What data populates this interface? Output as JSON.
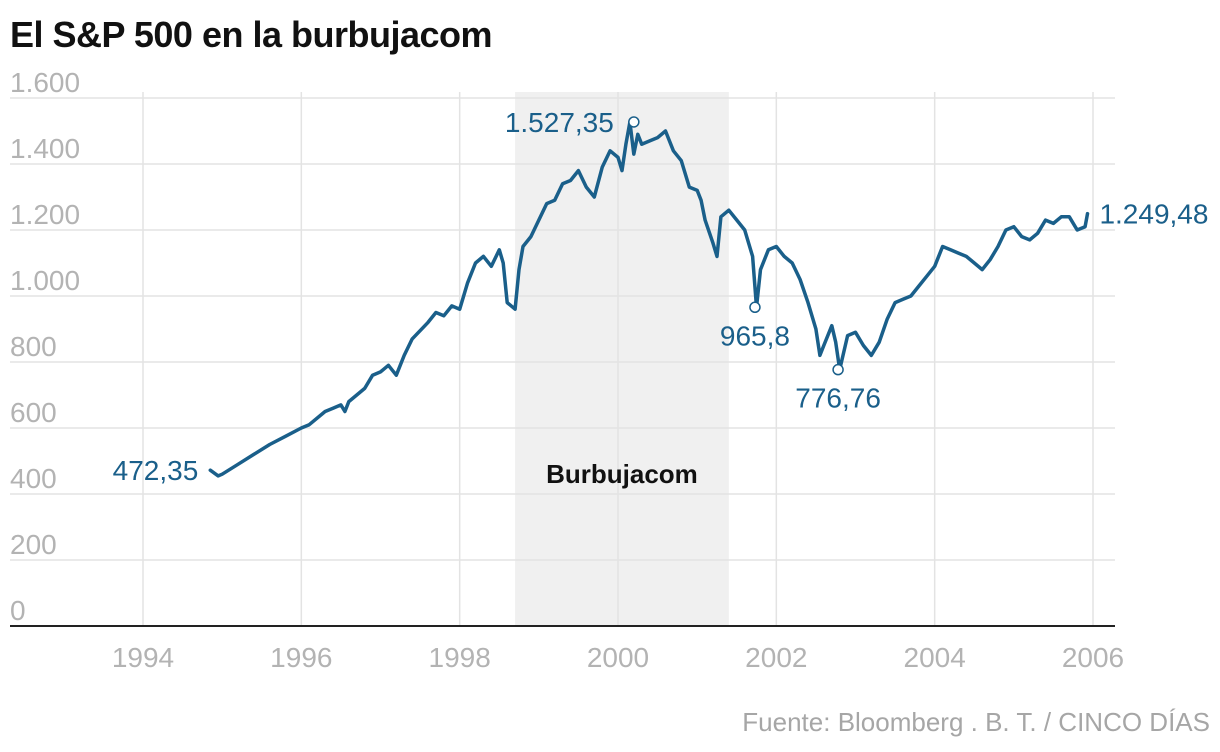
{
  "title": "El S&P 500 en la burbujacom",
  "source": "Fuente: Bloomberg . B. T. / CINCO DÍAS",
  "colors": {
    "line": "#1a5f8a",
    "shade": "#f0f0f0",
    "grid": "#e3e3e3",
    "tick": "#b3b3b3",
    "axis": "#222222"
  },
  "chart_data": {
    "type": "line",
    "title": "El S&P 500 en la burbujacom",
    "xlabel": "",
    "ylabel": "",
    "xlim": [
      1994,
      2006
    ],
    "ylim": [
      0,
      1600
    ],
    "grid": true,
    "y_ticks": [
      {
        "value": 0,
        "label": "0"
      },
      {
        "value": 200,
        "label": "200"
      },
      {
        "value": 400,
        "label": "400"
      },
      {
        "value": 600,
        "label": "600"
      },
      {
        "value": 800,
        "label": "800"
      },
      {
        "value": 1000,
        "label": "1.000"
      },
      {
        "value": 1200,
        "label": "1.200"
      },
      {
        "value": 1400,
        "label": "1.400"
      },
      {
        "value": 1600,
        "label": "1.600"
      }
    ],
    "x_ticks": [
      {
        "value": 1994,
        "label": "1994"
      },
      {
        "value": 1996,
        "label": "1996"
      },
      {
        "value": 1998,
        "label": "1998"
      },
      {
        "value": 2000,
        "label": "2000"
      },
      {
        "value": 2002,
        "label": "2002"
      },
      {
        "value": 2004,
        "label": "2004"
      },
      {
        "value": 2006,
        "label": "2006"
      }
    ],
    "shaded_region": {
      "x": [
        1998.7,
        2001.4
      ],
      "label": "Burbujacom"
    },
    "series": [
      {
        "x": [
          1994.85,
          1994.95,
          1995.0,
          1995.2,
          1995.4,
          1995.6,
          1995.8,
          1996.0,
          1996.1,
          1996.3,
          1996.4,
          1996.5,
          1996.55,
          1996.6,
          1996.8,
          1996.9,
          1997.0,
          1997.1,
          1997.2,
          1997.3,
          1997.4,
          1997.6,
          1997.7,
          1997.8,
          1997.9,
          1998.0,
          1998.1,
          1998.2,
          1998.3,
          1998.4,
          1998.5,
          1998.55,
          1998.6,
          1998.7,
          1998.75,
          1998.8,
          1998.9,
          1999.0,
          1999.1,
          1999.2,
          1999.3,
          1999.4,
          1999.5,
          1999.6,
          1999.7,
          1999.8,
          1999.9,
          2000.0,
          2000.05,
          2000.1,
          2000.15,
          2000.2,
          2000.25,
          2000.3,
          2000.4,
          2000.5,
          2000.6,
          2000.7,
          2000.8,
          2000.9,
          2001.0,
          2001.05,
          2001.1,
          2001.2,
          2001.25,
          2001.3,
          2001.4,
          2001.5,
          2001.6,
          2001.7,
          2001.75,
          2001.8,
          2001.9,
          2002.0,
          2002.1,
          2002.2,
          2002.3,
          2002.4,
          2002.5,
          2002.55,
          2002.6,
          2002.7,
          2002.75,
          2002.8,
          2002.9,
          2003.0,
          2003.1,
          2003.2,
          2003.3,
          2003.4,
          2003.5,
          2003.6,
          2003.7,
          2003.8,
          2003.9,
          2004.0,
          2004.1,
          2004.2,
          2004.3,
          2004.4,
          2004.5,
          2004.6,
          2004.7,
          2004.8,
          2004.9,
          2005.0,
          2005.1,
          2005.2,
          2005.3,
          2005.4,
          2005.5,
          2005.6,
          2005.7,
          2005.8,
          2005.9,
          2005.93
        ],
        "y": [
          472,
          455,
          460,
          490,
          520,
          550,
          575,
          600,
          610,
          650,
          660,
          670,
          650,
          680,
          720,
          760,
          770,
          790,
          760,
          820,
          870,
          920,
          950,
          940,
          970,
          960,
          1040,
          1100,
          1120,
          1090,
          1140,
          1100,
          980,
          960,
          1080,
          1150,
          1180,
          1230,
          1280,
          1290,
          1340,
          1350,
          1380,
          1330,
          1300,
          1390,
          1440,
          1420,
          1380,
          1460,
          1527,
          1430,
          1490,
          1460,
          1470,
          1480,
          1500,
          1440,
          1410,
          1330,
          1320,
          1290,
          1230,
          1160,
          1120,
          1240,
          1260,
          1230,
          1200,
          1120,
          966,
          1080,
          1140,
          1150,
          1120,
          1100,
          1050,
          980,
          900,
          820,
          850,
          910,
          860,
          777,
          880,
          890,
          850,
          820,
          860,
          930,
          980,
          990,
          1000,
          1030,
          1060,
          1090,
          1150,
          1140,
          1130,
          1120,
          1100,
          1080,
          1110,
          1150,
          1200,
          1210,
          1180,
          1170,
          1190,
          1230,
          1220,
          1240,
          1240,
          1200,
          1210,
          1249.48
        ]
      }
    ],
    "annotations": [
      {
        "x": 1994.85,
        "y": 472.35,
        "label": "472,35",
        "marker": false
      },
      {
        "x": 2000.2,
        "y": 1527.35,
        "label": "1.527,35",
        "marker": true
      },
      {
        "x": 2001.73,
        "y": 965.8,
        "label": "965,8",
        "marker": true
      },
      {
        "x": 2002.78,
        "y": 776.76,
        "label": "776,76",
        "marker": true
      },
      {
        "x": 2005.93,
        "y": 1249.48,
        "label": "1.249,48",
        "marker": false
      }
    ]
  }
}
